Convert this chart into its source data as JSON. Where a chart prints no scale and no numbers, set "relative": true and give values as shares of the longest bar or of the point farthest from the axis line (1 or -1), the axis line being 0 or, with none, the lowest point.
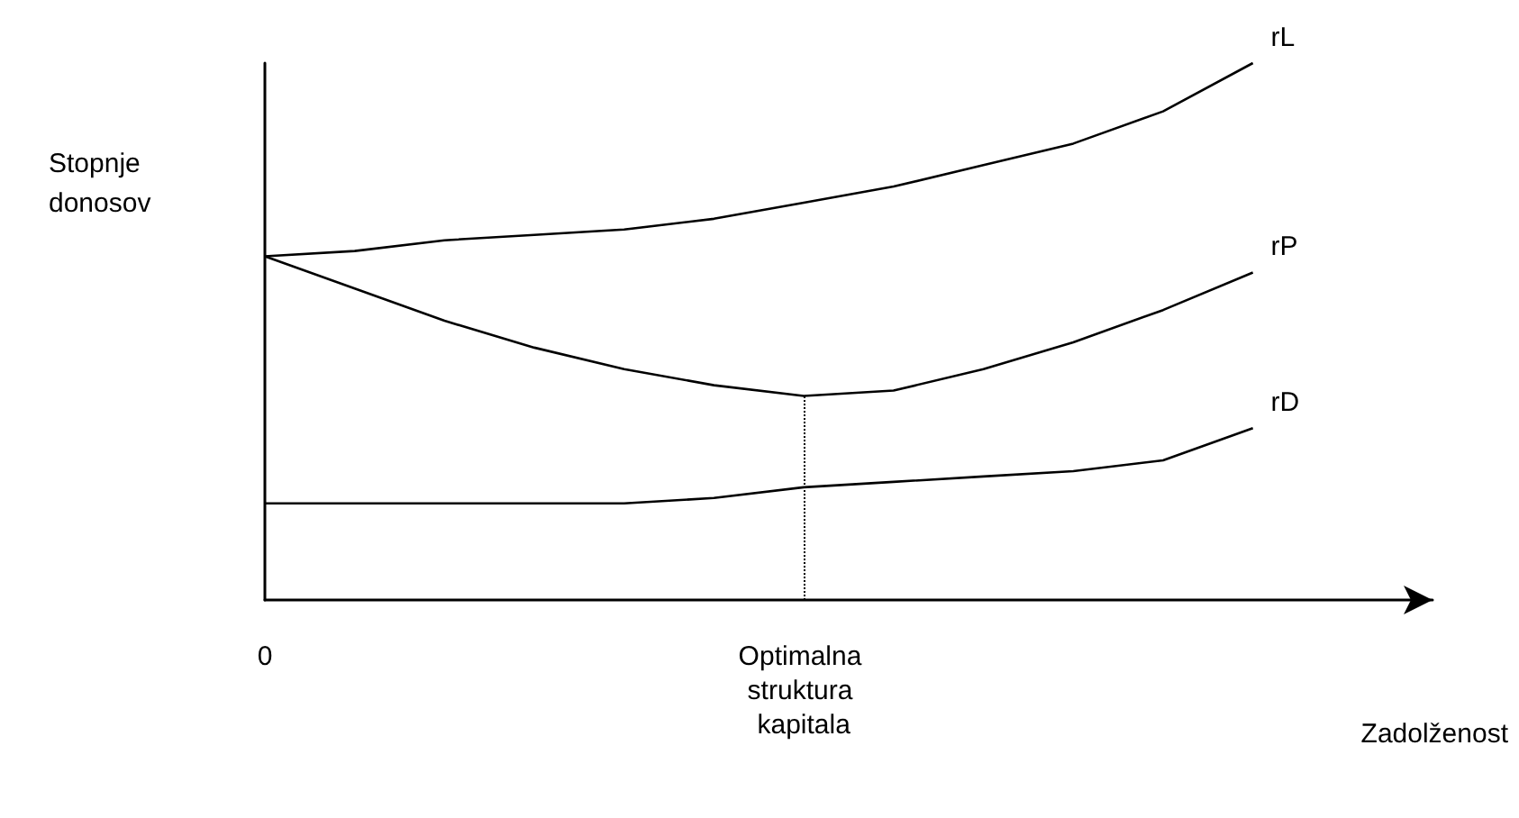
{
  "chart_data": {
    "type": "line",
    "relative": true,
    "xlabel": "Zadolženost",
    "ylabel": "Stopnje donosov",
    "categories": [
      "0",
      null,
      null,
      null,
      null,
      null,
      "Optimalna struktura kapitala",
      null,
      null,
      null,
      null,
      null,
      null,
      null
    ],
    "series": [
      {
        "name": "rL",
        "color": "#000000",
        "values": [
          0.64,
          0.65,
          0.67,
          0.68,
          0.69,
          0.71,
          0.74,
          0.77,
          0.81,
          0.85,
          0.91,
          1,
          null,
          null
        ]
      },
      {
        "name": "rP",
        "color": "#000000",
        "values": [
          0.64,
          0.58,
          0.52,
          0.47,
          0.43,
          0.4,
          0.38,
          0.39,
          0.43,
          0.48,
          0.54,
          0.61,
          null,
          null
        ]
      },
      {
        "name": "rD",
        "color": "#000000",
        "values": [
          0.18,
          0.18,
          0.18,
          0.18,
          0.18,
          0.19,
          0.21,
          0.22,
          0.23,
          0.24,
          0.26,
          0.32,
          null,
          null
        ]
      }
    ],
    "ref_lines": [
      {
        "axis": "x",
        "value": "Optimalna struktura kapitala",
        "line_style": "dotted",
        "color": "#000000"
      }
    ],
    "legend": false,
    "grid": false,
    "marker": "none",
    "line_style": "solid"
  }
}
